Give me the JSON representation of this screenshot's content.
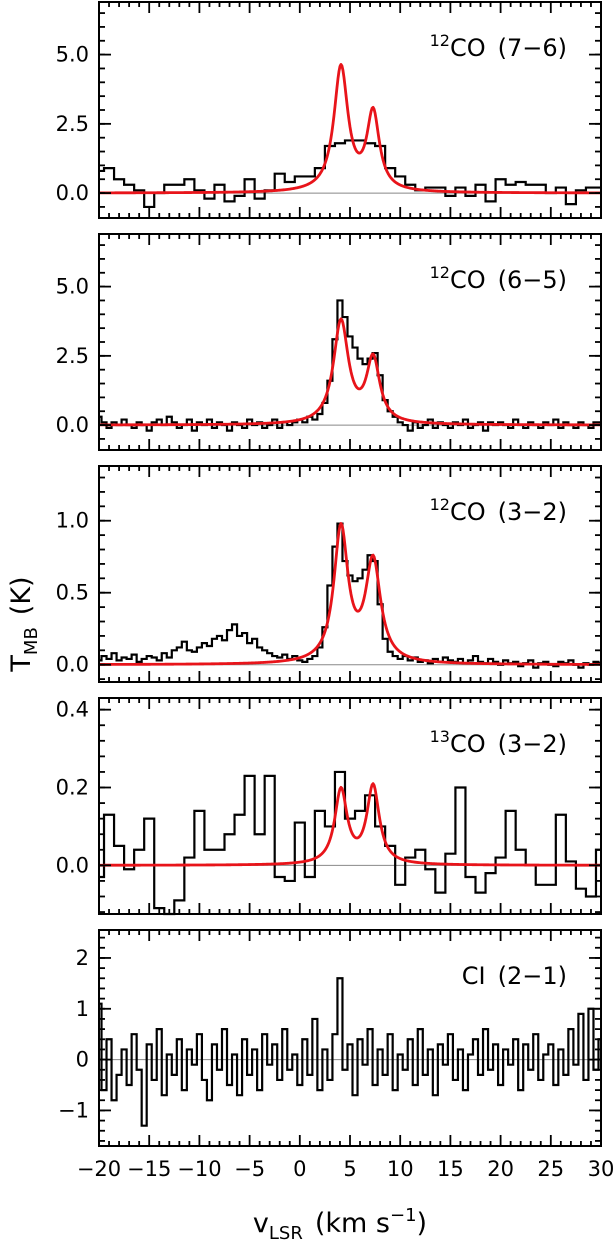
{
  "chart_data": [
    {
      "type": "line",
      "label": {
        "iso": "12",
        "mol": "CO",
        "trans": "(7−6)"
      },
      "xlim": [
        -20,
        30
      ],
      "ylim": [
        -0.9,
        6.9
      ],
      "yticks": [
        0.0,
        2.5,
        5.0
      ],
      "ytick_labels": [
        "0.0",
        "2.5",
        "5.0"
      ],
      "observed": {
        "name": "observed spectrum",
        "x": [
          -20,
          -19,
          -18,
          -17,
          -16,
          -15,
          -14,
          -13,
          -12,
          -11,
          -10,
          -9,
          -8,
          -7,
          -6,
          -5,
          -4,
          -3,
          -2,
          -1,
          0,
          1,
          2,
          3,
          4,
          5,
          6,
          7,
          8,
          9,
          10,
          11,
          12,
          13,
          14,
          15,
          16,
          17,
          18,
          19,
          20,
          21,
          22,
          23,
          24,
          25,
          26,
          27,
          28,
          29,
          30
        ],
        "y": [
          0.8,
          0.9,
          0.5,
          0.3,
          0.1,
          -0.5,
          0.0,
          0.3,
          0.3,
          0.5,
          0.1,
          -0.2,
          0.3,
          -0.3,
          -0.1,
          0.5,
          -0.2,
          0.1,
          0.7,
          0.4,
          0.6,
          0.6,
          0.9,
          1.7,
          1.8,
          1.9,
          1.9,
          1.8,
          1.7,
          0.9,
          0.6,
          0.3,
          0.1,
          0.2,
          0.2,
          -0.1,
          0.2,
          -0.1,
          0.3,
          -0.3,
          0.5,
          0.3,
          0.4,
          0.3,
          0.3,
          0.0,
          0.2,
          -0.4,
          0.1,
          0.2,
          0.2
        ]
      },
      "fit": {
        "name": "model fit",
        "peaks": [
          {
            "v": 4.1,
            "amp": 4.5,
            "w": 0.85
          },
          {
            "v": 7.3,
            "amp": 2.8,
            "w": 0.75
          }
        ]
      }
    },
    {
      "type": "line",
      "label": {
        "iso": "12",
        "mol": "CO",
        "trans": "(6−5)"
      },
      "xlim": [
        -20,
        30
      ],
      "ylim": [
        -0.9,
        6.9
      ],
      "yticks": [
        0.0,
        2.5,
        5.0
      ],
      "ytick_labels": [
        "0.0",
        "2.5",
        "5.0"
      ],
      "observed": {
        "name": "observed spectrum",
        "x": [
          -20,
          -19.5,
          -19,
          -18.5,
          -18,
          -17.5,
          -17,
          -16.5,
          -16,
          -15.5,
          -15,
          -14.5,
          -14,
          -13.5,
          -13,
          -12.5,
          -12,
          -11.5,
          -11,
          -10.5,
          -10,
          -9.5,
          -9,
          -8.5,
          -8,
          -7.5,
          -7,
          -6.5,
          -6,
          -5.5,
          -5,
          -4.5,
          -4,
          -3.5,
          -3,
          -2.5,
          -2,
          -1.5,
          -1,
          -0.5,
          0,
          0.5,
          1,
          1.5,
          2,
          2.5,
          3,
          3.5,
          4,
          4.5,
          5,
          5.5,
          6,
          6.5,
          7,
          7.5,
          8,
          8.5,
          9,
          9.5,
          10,
          10.5,
          11,
          11.5,
          12,
          12.5,
          13,
          13.5,
          14,
          14.5,
          15,
          15.5,
          16,
          16.5,
          17,
          17.5,
          18,
          18.5,
          19,
          19.5,
          20,
          20.5,
          21,
          21.5,
          22,
          22.5,
          23,
          23.5,
          24,
          24.5,
          25,
          25.5,
          26,
          26.5,
          27,
          27.5,
          28,
          28.5,
          29,
          29.5,
          30
        ],
        "y": [
          0.3,
          0.1,
          -0.1,
          0.1,
          0.0,
          0.2,
          0.0,
          -0.1,
          0.1,
          0.0,
          -0.2,
          0.1,
          0.2,
          0.0,
          0.3,
          0.1,
          -0.1,
          0.0,
          0.2,
          -0.2,
          0.1,
          0.0,
          0.2,
          -0.1,
          0.1,
          0.0,
          -0.2,
          0.1,
          0.0,
          -0.1,
          0.2,
          0.0,
          0.1,
          -0.1,
          0.0,
          0.2,
          -0.1,
          0.1,
          0.0,
          0.1,
          0.2,
          0.1,
          0.3,
          0.2,
          0.4,
          0.8,
          1.6,
          3.1,
          4.5,
          3.9,
          3.2,
          2.8,
          2.4,
          2.2,
          2.4,
          2.6,
          1.8,
          0.9,
          0.5,
          0.3,
          0.1,
          0.0,
          -0.2,
          0.1,
          -0.1,
          0.0,
          0.2,
          -0.1,
          0.1,
          0.0,
          -0.1,
          0.1,
          0.0,
          0.2,
          -0.1,
          0.0,
          0.1,
          -0.2,
          0.1,
          0.0,
          0.1,
          0.0,
          -0.1,
          0.2,
          0.0,
          -0.1,
          0.1,
          0.0,
          -0.1,
          0.1,
          0.0,
          0.2,
          -0.1,
          0.1,
          0.0,
          -0.1,
          0.1,
          0.0,
          -0.1,
          0.1,
          0.1
        ]
      },
      "fit": {
        "name": "model fit",
        "peaks": [
          {
            "v": 4.1,
            "amp": 3.7,
            "w": 0.9
          },
          {
            "v": 7.3,
            "amp": 2.3,
            "w": 0.8
          }
        ]
      }
    },
    {
      "type": "line",
      "label": {
        "iso": "12",
        "mol": "CO",
        "trans": "(3−2)"
      },
      "xlim": [
        -20,
        30
      ],
      "ylim": [
        -0.12,
        1.38
      ],
      "yticks": [
        0.0,
        0.5,
        1.0
      ],
      "ytick_labels": [
        "0.0",
        "0.5",
        "1.0"
      ],
      "observed": {
        "name": "observed spectrum",
        "x": [
          -20,
          -19.5,
          -19,
          -18.5,
          -18,
          -17.5,
          -17,
          -16.5,
          -16,
          -15.5,
          -15,
          -14.5,
          -14,
          -13.5,
          -13,
          -12.5,
          -12,
          -11.5,
          -11,
          -10.5,
          -10,
          -9.5,
          -9,
          -8.5,
          -8,
          -7.5,
          -7,
          -6.5,
          -6,
          -5.5,
          -5,
          -4.5,
          -4,
          -3.5,
          -3,
          -2.5,
          -2,
          -1.5,
          -1,
          -0.5,
          0,
          0.5,
          1,
          1.5,
          2,
          2.5,
          3,
          3.5,
          4,
          4.5,
          5,
          5.5,
          6,
          6.5,
          7,
          7.5,
          8,
          8.5,
          9,
          9.5,
          10,
          10.5,
          11,
          11.5,
          12,
          12.5,
          13,
          13.5,
          14,
          14.5,
          15,
          15.5,
          16,
          16.5,
          17,
          17.5,
          18,
          18.5,
          19,
          19.5,
          20,
          20.5,
          21,
          21.5,
          22,
          22.5,
          23,
          23.5,
          24,
          24.5,
          25,
          25.5,
          26,
          26.5,
          27,
          27.5,
          28,
          28.5,
          29,
          29.5,
          30
        ],
        "y": [
          0.03,
          0.06,
          0.04,
          0.08,
          0.03,
          0.05,
          0.04,
          0.07,
          0.02,
          0.04,
          0.06,
          0.05,
          0.03,
          0.08,
          0.05,
          0.1,
          0.12,
          0.16,
          0.1,
          0.09,
          0.12,
          0.15,
          0.13,
          0.18,
          0.2,
          0.17,
          0.24,
          0.28,
          0.2,
          0.22,
          0.15,
          0.18,
          0.12,
          0.1,
          0.08,
          0.06,
          0.05,
          0.07,
          0.04,
          0.06,
          0.03,
          0.02,
          0.04,
          0.06,
          0.12,
          0.26,
          0.55,
          0.82,
          0.98,
          0.72,
          0.62,
          0.58,
          0.6,
          0.66,
          0.76,
          0.72,
          0.42,
          0.18,
          0.09,
          0.06,
          0.04,
          0.06,
          0.03,
          0.05,
          0.02,
          0.03,
          0.01,
          0.04,
          0.02,
          0.05,
          0.03,
          0.02,
          0.04,
          0.01,
          0.03,
          0.06,
          0.02,
          0.01,
          0.04,
          0.02,
          0.0,
          0.03,
          0.01,
          0.02,
          -0.01,
          0.01,
          0.03,
          -0.02,
          0.01,
          0.02,
          0.0,
          -0.01,
          0.02,
          0.01,
          0.03,
          0.0,
          -0.02,
          0.01,
          0.0,
          0.02,
          0.01
        ]
      },
      "fit": {
        "name": "model fit",
        "peaks": [
          {
            "v": 4.1,
            "amp": 0.93,
            "w": 0.85
          },
          {
            "v": 7.3,
            "amp": 0.7,
            "w": 0.9
          }
        ]
      }
    },
    {
      "type": "line",
      "label": {
        "iso": "13",
        "mol": "CO",
        "trans": "(3−2)"
      },
      "xlim": [
        -20,
        30
      ],
      "ylim": [
        -0.125,
        0.43
      ],
      "yticks": [
        0.0,
        0.2,
        0.4
      ],
      "ytick_labels": [
        "0.0",
        "0.2",
        "0.4"
      ],
      "observed": {
        "name": "observed spectrum",
        "x": [
          -20,
          -19,
          -18,
          -17,
          -16,
          -15,
          -14,
          -13,
          -12,
          -11,
          -10,
          -9,
          -8,
          -7,
          -6,
          -5,
          -4,
          -3,
          -2,
          -1,
          0,
          1,
          2,
          3,
          4,
          5,
          6,
          7,
          8,
          9,
          10,
          11,
          12,
          13,
          14,
          15,
          16,
          17,
          18,
          19,
          20,
          21,
          22,
          23,
          24,
          25,
          26,
          27,
          28,
          29,
          30
        ],
        "y": [
          -0.03,
          0.13,
          0.05,
          -0.01,
          0.04,
          0.12,
          -0.11,
          -0.13,
          -0.09,
          0.02,
          0.14,
          0.04,
          0.04,
          0.08,
          0.13,
          0.23,
          0.08,
          0.23,
          -0.03,
          -0.04,
          0.11,
          -0.03,
          0.14,
          0.1,
          0.24,
          0.12,
          0.14,
          0.18,
          0.1,
          0.05,
          -0.05,
          0.02,
          0.04,
          -0.01,
          -0.07,
          0.03,
          0.2,
          -0.03,
          -0.07,
          -0.02,
          0.02,
          0.14,
          0.04,
          0.0,
          -0.05,
          -0.05,
          0.13,
          0.01,
          -0.06,
          -0.08,
          0.04
        ]
      },
      "fit": {
        "name": "model fit",
        "peaks": [
          {
            "v": 4.1,
            "amp": 0.19,
            "w": 0.75
          },
          {
            "v": 7.3,
            "amp": 0.2,
            "w": 0.75
          }
        ]
      }
    },
    {
      "type": "line",
      "label": {
        "iso": "",
        "mol": "CI",
        "trans": "(2−1)"
      },
      "xlim": [
        -20,
        30
      ],
      "ylim": [
        -1.7,
        2.55
      ],
      "yticks": [
        -1,
        0,
        1,
        2
      ],
      "ytick_labels": [
        "−1",
        "0",
        "1",
        "2"
      ],
      "observed": {
        "name": "observed spectrum",
        "x": [
          -20,
          -19.5,
          -19,
          -18.5,
          -18,
          -17.5,
          -17,
          -16.5,
          -16,
          -15.5,
          -15,
          -14.5,
          -14,
          -13.5,
          -13,
          -12.5,
          -12,
          -11.5,
          -11,
          -10.5,
          -10,
          -9.5,
          -9,
          -8.5,
          -8,
          -7.5,
          -7,
          -6.5,
          -6,
          -5.5,
          -5,
          -4.5,
          -4,
          -3.5,
          -3,
          -2.5,
          -2,
          -1.5,
          -1,
          -0.5,
          0,
          0.5,
          1,
          1.5,
          2,
          2.5,
          3,
          3.5,
          4,
          4.5,
          5,
          5.5,
          6,
          6.5,
          7,
          7.5,
          8,
          8.5,
          9,
          9.5,
          10,
          10.5,
          11,
          11.5,
          12,
          12.5,
          13,
          13.5,
          14,
          14.5,
          15,
          15.5,
          16,
          16.5,
          17,
          17.5,
          18,
          18.5,
          19,
          19.5,
          20,
          20.5,
          21,
          21.5,
          22,
          22.5,
          23,
          23.5,
          24,
          24.5,
          25,
          25.5,
          26,
          26.5,
          27,
          27.5,
          28,
          28.5,
          29,
          29.5,
          30
        ],
        "y": [
          1.1,
          -0.6,
          0.4,
          -0.8,
          -0.3,
          0.2,
          -0.5,
          0.5,
          -0.2,
          -1.3,
          0.3,
          -0.4,
          0.6,
          -0.7,
          0.1,
          -0.3,
          0.4,
          -0.6,
          0.2,
          -0.1,
          0.5,
          -0.4,
          -0.8,
          0.3,
          -0.2,
          0.6,
          -0.5,
          0.1,
          -0.7,
          0.4,
          -0.3,
          0.2,
          -0.6,
          0.5,
          -0.1,
          0.3,
          -0.4,
          0.6,
          -0.2,
          0.1,
          -0.5,
          0.4,
          -0.3,
          0.8,
          -0.6,
          0.2,
          -0.4,
          0.5,
          1.6,
          -0.2,
          0.3,
          -0.7,
          0.4,
          -0.1,
          0.6,
          -0.5,
          0.2,
          -0.3,
          0.5,
          -0.6,
          0.1,
          -0.2,
          0.4,
          -0.5,
          0.6,
          -0.3,
          0.2,
          -0.7,
          0.3,
          -0.1,
          0.5,
          -0.4,
          0.2,
          -0.6,
          0.1,
          0.4,
          -0.3,
          0.6,
          -0.2,
          0.3,
          -0.5,
          0.2,
          -0.1,
          0.4,
          -0.6,
          0.3,
          -0.2,
          0.5,
          -0.4,
          0.1,
          0.3,
          -0.5,
          0.2,
          -0.3,
          0.6,
          -0.1,
          0.9,
          -0.4,
          1.0,
          -0.2,
          0.4
        ]
      },
      "fit": null
    }
  ],
  "x_axis": {
    "ticks": [
      -20,
      -15,
      -10,
      -5,
      0,
      5,
      10,
      15,
      20,
      25,
      30
    ],
    "tick_labels": [
      "−20",
      "−15",
      "−10",
      "−5",
      "0",
      "5",
      "10",
      "15",
      "20",
      "25",
      "30"
    ],
    "title": {
      "main": "v",
      "sub": "LSR",
      "rest": "(km s",
      "sup": "−1",
      "close": ")"
    }
  },
  "y_axis": {
    "title": {
      "main": "T",
      "sub": "MB",
      "rest": "(K)"
    }
  },
  "colors": {
    "observed": "#000000",
    "fit": "#e8141a",
    "zero_line": "#888888"
  }
}
